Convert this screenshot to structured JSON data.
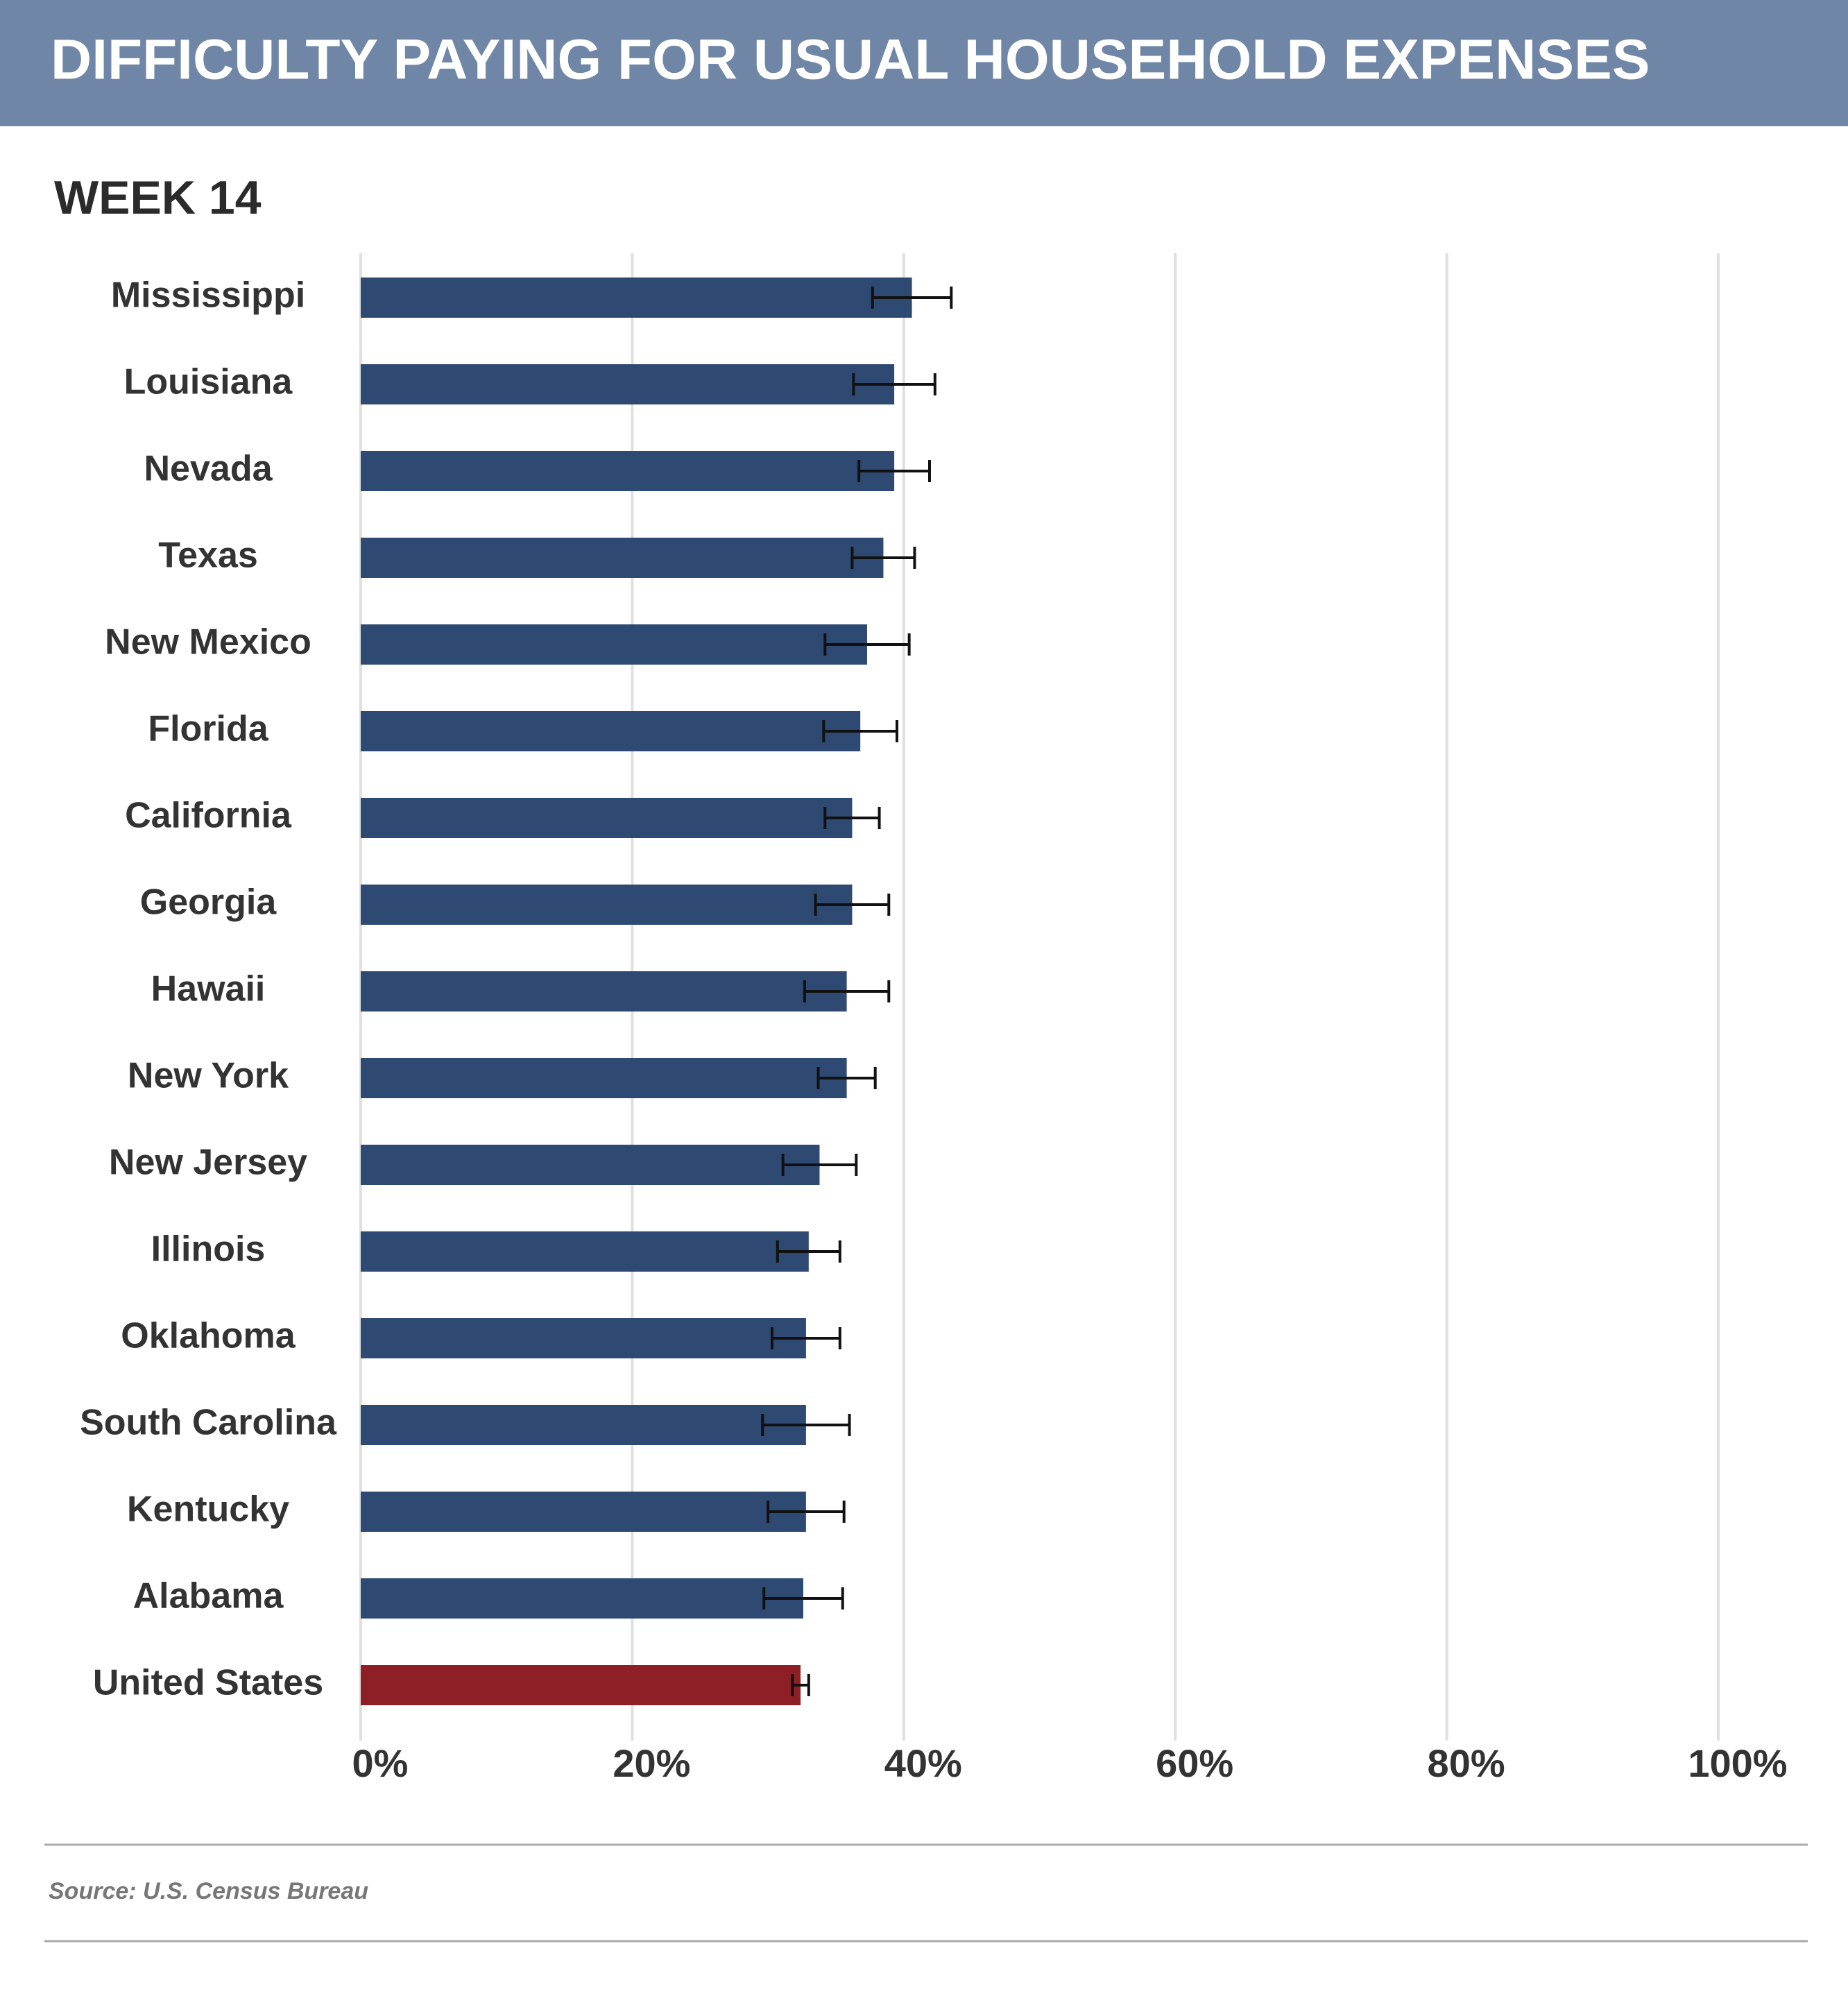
{
  "chart_data": {
    "type": "bar",
    "orientation": "horizontal",
    "title": "DIFFICULTY PAYING FOR USUAL HOUSEHOLD EXPENSES",
    "subtitle": "WEEK 14",
    "source": "Source: U.S. Census Bureau",
    "categories": [
      "Mississippi",
      "Louisiana",
      "Nevada",
      "Texas",
      "New Mexico",
      "Florida",
      "California",
      "Georgia",
      "Hawaii",
      "New York",
      "New Jersey",
      "Illinois",
      "Oklahoma",
      "South Carolina",
      "Kentucky",
      "Alabama",
      "United States"
    ],
    "values": [
      40.6,
      39.3,
      39.3,
      38.5,
      37.3,
      36.8,
      36.2,
      36.2,
      35.8,
      35.8,
      33.8,
      33.0,
      32.8,
      32.8,
      32.8,
      32.6,
      32.4
    ],
    "errors": [
      2.9,
      3.0,
      2.6,
      2.3,
      3.1,
      2.7,
      2.0,
      2.7,
      3.1,
      2.1,
      2.7,
      2.3,
      2.5,
      3.2,
      2.8,
      2.9,
      0.6
    ],
    "colors": [
      "#2e4a73",
      "#2e4a73",
      "#2e4a73",
      "#2e4a73",
      "#2e4a73",
      "#2e4a73",
      "#2e4a73",
      "#2e4a73",
      "#2e4a73",
      "#2e4a73",
      "#2e4a73",
      "#2e4a73",
      "#2e4a73",
      "#2e4a73",
      "#2e4a73",
      "#2e4a73",
      "#8e1f26"
    ],
    "xlim": [
      0,
      100
    ],
    "xticks": [
      {
        "value": 0,
        "label": "0%"
      },
      {
        "value": 20,
        "label": "20%"
      },
      {
        "value": 40,
        "label": "40%"
      },
      {
        "value": 60,
        "label": "60%"
      },
      {
        "value": 80,
        "label": "80%"
      },
      {
        "value": 100,
        "label": "100%"
      }
    ],
    "grid": true
  }
}
